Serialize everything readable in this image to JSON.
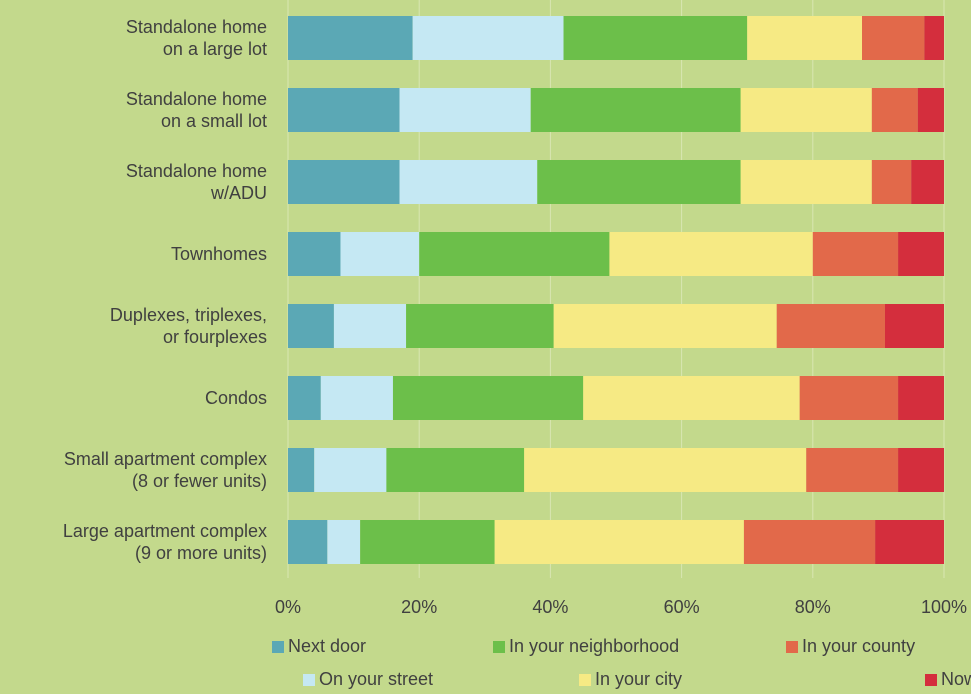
{
  "chart_data": {
    "type": "stacked_barh",
    "categories": [
      "Standalone home\non a large lot",
      "Standalone home\non a small lot",
      "Standalone home\nw/ADU",
      "Townhomes",
      "Duplexes, triplexes,\nor fourplexes",
      "Condos",
      "Small apartment complex\n(8 or fewer units)",
      "Large apartment complex\n(9 or more units)"
    ],
    "series": [
      {
        "name": "Next door",
        "color": "#5ba8b5",
        "values": [
          19,
          17,
          17,
          8,
          7,
          5,
          4,
          6
        ]
      },
      {
        "name": "On your street",
        "color": "#c5e8f3",
        "values": [
          23,
          20,
          21,
          12,
          11,
          11,
          11,
          5
        ]
      },
      {
        "name": "In your neighborhood",
        "color": "#6cbf4a",
        "values": [
          28,
          32,
          31,
          29,
          22.5,
          29,
          21,
          20.5
        ]
      },
      {
        "name": "In your city",
        "color": "#f6ea84",
        "values": [
          17.5,
          20,
          20,
          31,
          34,
          33,
          43,
          38
        ]
      },
      {
        "name": "In your county",
        "color": "#e2694a",
        "values": [
          9.5,
          7,
          6,
          13,
          16.5,
          15,
          14,
          20
        ]
      },
      {
        "name": "Nowhere",
        "color": "#d42e3d",
        "values": [
          3,
          4,
          5,
          7,
          9,
          7,
          7,
          10.5
        ]
      }
    ],
    "xlim": [
      0,
      100
    ],
    "xticks": [
      {
        "value": 0,
        "label": "0%"
      },
      {
        "value": 20,
        "label": "20%"
      },
      {
        "value": 40,
        "label": "40%"
      },
      {
        "value": 60,
        "label": "60%"
      },
      {
        "value": 80,
        "label": "80%"
      },
      {
        "value": 100,
        "label": "100%"
      }
    ],
    "grid": true
  }
}
